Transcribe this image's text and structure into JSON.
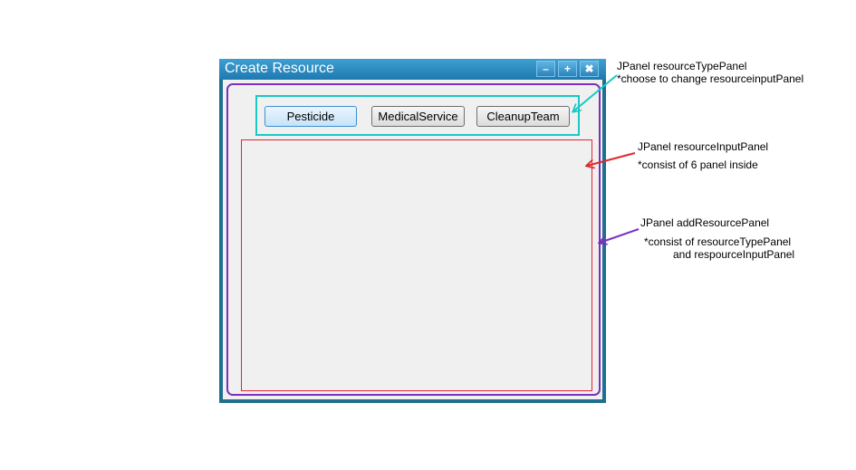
{
  "window": {
    "title": "Create Resource",
    "controls": {
      "minimize": "–",
      "maximize": "+",
      "close": "✖"
    }
  },
  "buttons": [
    {
      "label": "Pesticide",
      "selected": true
    },
    {
      "label": "MedicalService",
      "selected": false
    },
    {
      "label": "CleanupTeam",
      "selected": false
    }
  ],
  "annotations": {
    "type_panel": {
      "line1": "JPanel resourceTypePanel",
      "line2": "*choose to change resourceinputPanel"
    },
    "input_panel": {
      "line1": "JPanel resourceInputPanel",
      "line2": "*consist of 6 panel inside"
    },
    "add_panel": {
      "line1": "JPanel addResourcePanel",
      "line2": "*consist of resourceTypePanel",
      "line3": "and respourceInputPanel"
    }
  },
  "colors": {
    "type_panel": "#19c9c4",
    "input_panel": "#e0282f",
    "add_panel": "#7b2fbf",
    "window_frame": "#1e6f90"
  }
}
